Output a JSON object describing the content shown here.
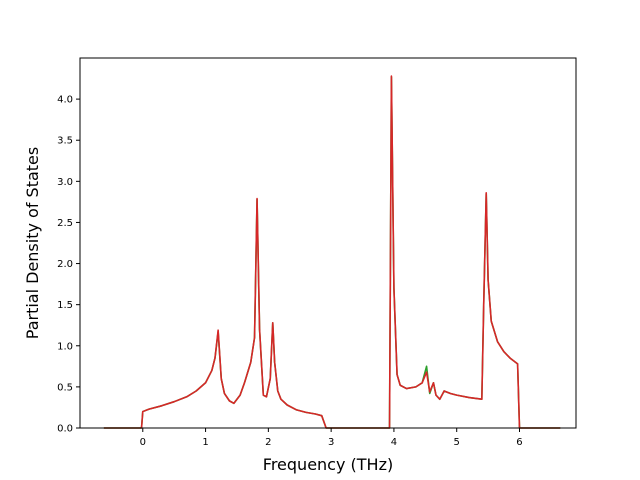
{
  "chart_data": {
    "type": "line",
    "title": "",
    "xlabel": "Frequency (THz)",
    "ylabel": "Partial Density of States",
    "xlim": [
      -1.0,
      6.9
    ],
    "ylim": [
      0.0,
      4.5
    ],
    "xticks": [
      0,
      1,
      2,
      3,
      4,
      5,
      6
    ],
    "xtick_labels": [
      "0",
      "1",
      "2",
      "3",
      "4",
      "5",
      "6"
    ],
    "yticks": [
      0.0,
      0.5,
      1.0,
      1.5,
      2.0,
      2.5,
      3.0,
      3.5,
      4.0
    ],
    "ytick_labels": [
      "0.0",
      "0.5",
      "1.0",
      "1.5",
      "2.0",
      "2.5",
      "3.0",
      "3.5",
      "4.0"
    ],
    "grid": false,
    "legend": "none",
    "series": [
      {
        "color": "#2ca02c",
        "points": [
          [
            -0.62,
            0
          ],
          [
            -0.02,
            0
          ],
          [
            0.0,
            0.2
          ],
          [
            0.1,
            0.23
          ],
          [
            0.3,
            0.27
          ],
          [
            0.5,
            0.32
          ],
          [
            0.7,
            0.38
          ],
          [
            0.85,
            0.45
          ],
          [
            1.0,
            0.55
          ],
          [
            1.1,
            0.7
          ],
          [
            1.15,
            0.85
          ],
          [
            1.2,
            1.17
          ],
          [
            1.25,
            0.6
          ],
          [
            1.3,
            0.42
          ],
          [
            1.38,
            0.33
          ],
          [
            1.45,
            0.3
          ],
          [
            1.55,
            0.4
          ],
          [
            1.62,
            0.55
          ],
          [
            1.72,
            0.8
          ],
          [
            1.78,
            1.1
          ],
          [
            1.82,
            2.78
          ],
          [
            1.86,
            1.2
          ],
          [
            1.92,
            0.4
          ],
          [
            1.97,
            0.38
          ],
          [
            2.03,
            0.6
          ],
          [
            2.07,
            1.28
          ],
          [
            2.1,
            0.8
          ],
          [
            2.15,
            0.45
          ],
          [
            2.2,
            0.35
          ],
          [
            2.3,
            0.28
          ],
          [
            2.45,
            0.22
          ],
          [
            2.6,
            0.19
          ],
          [
            2.75,
            0.17
          ],
          [
            2.85,
            0.15
          ],
          [
            2.92,
            0.0
          ],
          [
            3.9,
            0.0
          ],
          [
            3.93,
            0.0
          ],
          [
            3.96,
            4.27
          ],
          [
            4.0,
            1.7
          ],
          [
            4.05,
            0.65
          ],
          [
            4.1,
            0.52
          ],
          [
            4.2,
            0.48
          ],
          [
            4.35,
            0.5
          ],
          [
            4.45,
            0.55
          ],
          [
            4.52,
            0.75
          ],
          [
            4.57,
            0.42
          ],
          [
            4.63,
            0.55
          ],
          [
            4.67,
            0.4
          ],
          [
            4.73,
            0.35
          ],
          [
            4.8,
            0.45
          ],
          [
            4.9,
            0.42
          ],
          [
            5.0,
            0.4
          ],
          [
            5.2,
            0.37
          ],
          [
            5.4,
            0.35
          ],
          [
            5.43,
            1.5
          ],
          [
            5.47,
            2.85
          ],
          [
            5.5,
            1.8
          ],
          [
            5.55,
            1.3
          ],
          [
            5.65,
            1.05
          ],
          [
            5.75,
            0.93
          ],
          [
            5.85,
            0.85
          ],
          [
            5.97,
            0.78
          ],
          [
            6.0,
            0.0
          ],
          [
            6.65,
            0.0
          ]
        ]
      },
      {
        "color": "#d62728",
        "points": [
          [
            -0.62,
            0
          ],
          [
            -0.02,
            0
          ],
          [
            0.0,
            0.2
          ],
          [
            0.1,
            0.23
          ],
          [
            0.3,
            0.27
          ],
          [
            0.5,
            0.32
          ],
          [
            0.7,
            0.38
          ],
          [
            0.85,
            0.45
          ],
          [
            1.0,
            0.55
          ],
          [
            1.1,
            0.7
          ],
          [
            1.15,
            0.85
          ],
          [
            1.2,
            1.19
          ],
          [
            1.25,
            0.6
          ],
          [
            1.3,
            0.42
          ],
          [
            1.38,
            0.33
          ],
          [
            1.45,
            0.3
          ],
          [
            1.55,
            0.4
          ],
          [
            1.62,
            0.55
          ],
          [
            1.72,
            0.8
          ],
          [
            1.78,
            1.1
          ],
          [
            1.82,
            2.79
          ],
          [
            1.86,
            1.2
          ],
          [
            1.92,
            0.4
          ],
          [
            1.97,
            0.38
          ],
          [
            2.03,
            0.6
          ],
          [
            2.07,
            1.28
          ],
          [
            2.1,
            0.8
          ],
          [
            2.15,
            0.45
          ],
          [
            2.2,
            0.35
          ],
          [
            2.3,
            0.28
          ],
          [
            2.45,
            0.22
          ],
          [
            2.6,
            0.19
          ],
          [
            2.75,
            0.17
          ],
          [
            2.85,
            0.15
          ],
          [
            2.92,
            0.0
          ],
          [
            3.9,
            0.0
          ],
          [
            3.93,
            0.0
          ],
          [
            3.96,
            4.28
          ],
          [
            4.0,
            1.7
          ],
          [
            4.05,
            0.65
          ],
          [
            4.1,
            0.52
          ],
          [
            4.2,
            0.48
          ],
          [
            4.35,
            0.5
          ],
          [
            4.45,
            0.55
          ],
          [
            4.52,
            0.68
          ],
          [
            4.57,
            0.44
          ],
          [
            4.63,
            0.55
          ],
          [
            4.67,
            0.4
          ],
          [
            4.73,
            0.35
          ],
          [
            4.8,
            0.45
          ],
          [
            4.9,
            0.42
          ],
          [
            5.0,
            0.4
          ],
          [
            5.2,
            0.37
          ],
          [
            5.4,
            0.35
          ],
          [
            5.43,
            1.5
          ],
          [
            5.47,
            2.86
          ],
          [
            5.5,
            1.8
          ],
          [
            5.55,
            1.3
          ],
          [
            5.65,
            1.05
          ],
          [
            5.75,
            0.93
          ],
          [
            5.85,
            0.85
          ],
          [
            5.97,
            0.78
          ],
          [
            6.0,
            0.0
          ],
          [
            6.65,
            0.0
          ]
        ]
      }
    ]
  }
}
